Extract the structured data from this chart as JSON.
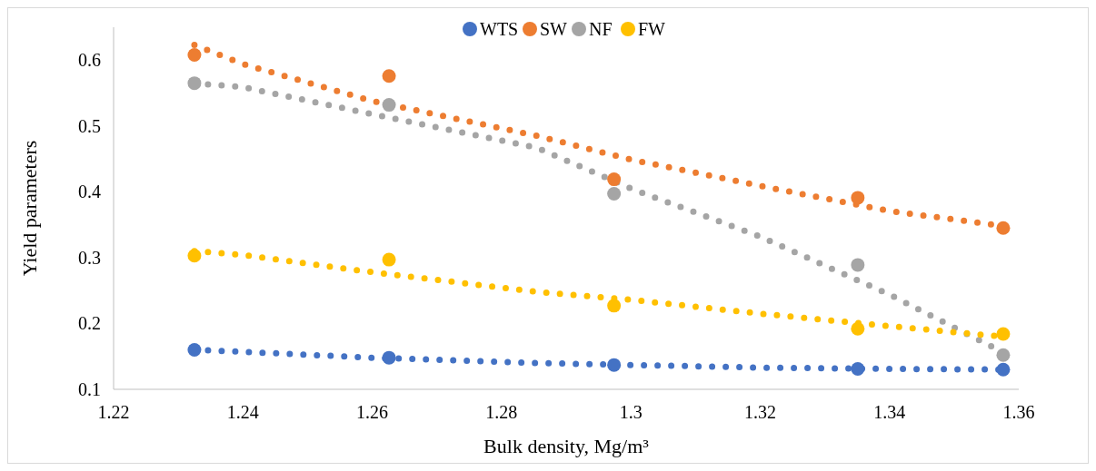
{
  "chart_data": {
    "type": "scatter",
    "xlabel": "Bulk density, Mg/m³",
    "ylabel": "Yield parameters",
    "xlim": [
      1.22,
      1.36
    ],
    "xticks": [
      1.22,
      1.24,
      1.26,
      1.28,
      1.3,
      1.32,
      1.34,
      1.36
    ],
    "ylim": [
      0.1,
      0.65
    ],
    "yticks": [
      0.1,
      0.2,
      0.3,
      0.4,
      0.5,
      0.6
    ],
    "legend": "top",
    "grid": false,
    "marker": "circle",
    "series": [
      {
        "name": "WTS",
        "color": "#4472c4",
        "x": [
          1.2325,
          1.2626,
          1.2974,
          1.3351,
          1.3576
        ],
        "values": [
          0.16,
          0.148,
          0.137,
          0.131,
          0.13
        ]
      },
      {
        "name": "SW",
        "color": "#ed7d31",
        "x": [
          1.2325,
          1.2626,
          1.2974,
          1.3351,
          1.3576
        ],
        "values": [
          0.608,
          0.576,
          0.419,
          0.391,
          0.345
        ]
      },
      {
        "name": "NF",
        "color": "#a5a5a5",
        "x": [
          1.2325,
          1.2626,
          1.2974,
          1.3351,
          1.3576
        ],
        "values": [
          0.565,
          0.532,
          0.397,
          0.289,
          0.152
        ]
      },
      {
        "name": "FW",
        "color": "#ffc000",
        "x": [
          1.2325,
          1.2626,
          1.2974,
          1.3351,
          1.3576
        ],
        "values": [
          0.303,
          0.297,
          0.227,
          0.192,
          0.184
        ]
      },
      {
        "type": "line",
        "marker": "none",
        "line_style": "dotted",
        "color": "#4472c4",
        "x": [
          1.2325,
          1.24,
          1.26,
          1.2855,
          1.3,
          1.32,
          1.34,
          1.3576
        ],
        "values": [
          0.16,
          0.157,
          0.148,
          0.14,
          0.137,
          0.133,
          0.131,
          0.13
        ]
      },
      {
        "type": "line",
        "marker": "none",
        "line_style": "dotted",
        "color": "#ed7d31",
        "x": [
          1.2325,
          1.24,
          1.26,
          1.2855,
          1.3,
          1.32,
          1.34,
          1.3576
        ],
        "values": [
          0.623,
          0.594,
          0.538,
          0.485,
          0.449,
          0.409,
          0.371,
          0.348
        ]
      },
      {
        "type": "line",
        "marker": "none",
        "line_style": "dotted",
        "color": "#a5a5a5",
        "x": [
          1.2325,
          1.24,
          1.26,
          1.2855,
          1.3,
          1.32,
          1.34,
          1.3576
        ],
        "values": [
          0.565,
          0.559,
          0.518,
          0.467,
          0.405,
          0.332,
          0.244,
          0.156
        ]
      },
      {
        "type": "line",
        "marker": "none",
        "line_style": "dotted",
        "color": "#ffc000",
        "x": [
          1.2325,
          1.24,
          1.26,
          1.2855,
          1.3,
          1.32,
          1.34,
          1.3576
        ],
        "values": [
          0.31,
          0.304,
          0.278,
          0.248,
          0.236,
          0.215,
          0.196,
          0.18
        ]
      }
    ]
  }
}
